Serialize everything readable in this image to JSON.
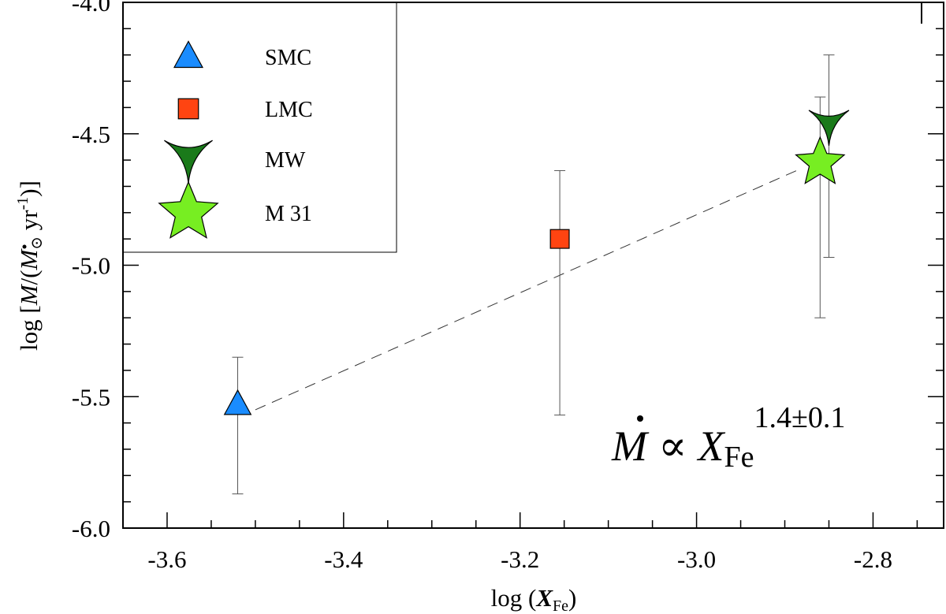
{
  "chart_data": {
    "type": "scatter",
    "xlabel": {
      "prefix": "log (",
      "var": "X",
      "sub": "Fe",
      "suffix": ")"
    },
    "ylabel": {
      "prefix": "log [",
      "mdot": "M",
      "mid": "/(",
      "msun": "M",
      "sun": "⊙",
      "unit": " yr",
      "exp": "-1",
      "suffix": ")]"
    },
    "xlim": [
      -3.65,
      -2.72
    ],
    "ylim": [
      -6.0,
      -4.0
    ],
    "xticks": [
      -3.6,
      -3.4,
      -3.2,
      -3.0,
      -2.8
    ],
    "xtick_labels": [
      "-3.6",
      "-3.4",
      "-3.2",
      "-3.0",
      "-2.8"
    ],
    "yticks": [
      -6.0,
      -5.5,
      -5.0,
      -4.5,
      -4.0
    ],
    "ytick_labels": [
      "-6.0",
      "-5.5",
      "-5.0",
      "-4.5",
      "-4.0"
    ],
    "grid": false,
    "legend_position": "top-left",
    "series": [
      {
        "name": "SMC",
        "marker": "triangle",
        "color": "#1a8cff",
        "x": -3.52,
        "y": -5.53,
        "yerr_low": -5.87,
        "yerr_high": -5.35
      },
      {
        "name": "LMC",
        "marker": "square",
        "color": "#ff4411",
        "x": -3.155,
        "y": -4.9,
        "yerr_low": -5.57,
        "yerr_high": -4.64
      },
      {
        "name": "MW",
        "marker": "arrowhead",
        "color": "#1a7a1a",
        "x": -2.85,
        "y": -4.46,
        "yerr_low": -4.97,
        "yerr_high": -4.2
      },
      {
        "name": "M 31",
        "marker": "star",
        "color": "#77ee22",
        "x": -2.86,
        "y": -4.61,
        "yerr_low": -5.2,
        "yerr_high": -4.36
      }
    ],
    "fit_line": {
      "style": "dashed",
      "x": [
        -3.5,
        -2.88
      ],
      "y": [
        -5.55,
        -4.63
      ]
    },
    "annotation": {
      "mdot": "M",
      "propto": "∝",
      "var": "X",
      "sub": "Fe",
      "exponent": "1.4±0.1"
    }
  }
}
